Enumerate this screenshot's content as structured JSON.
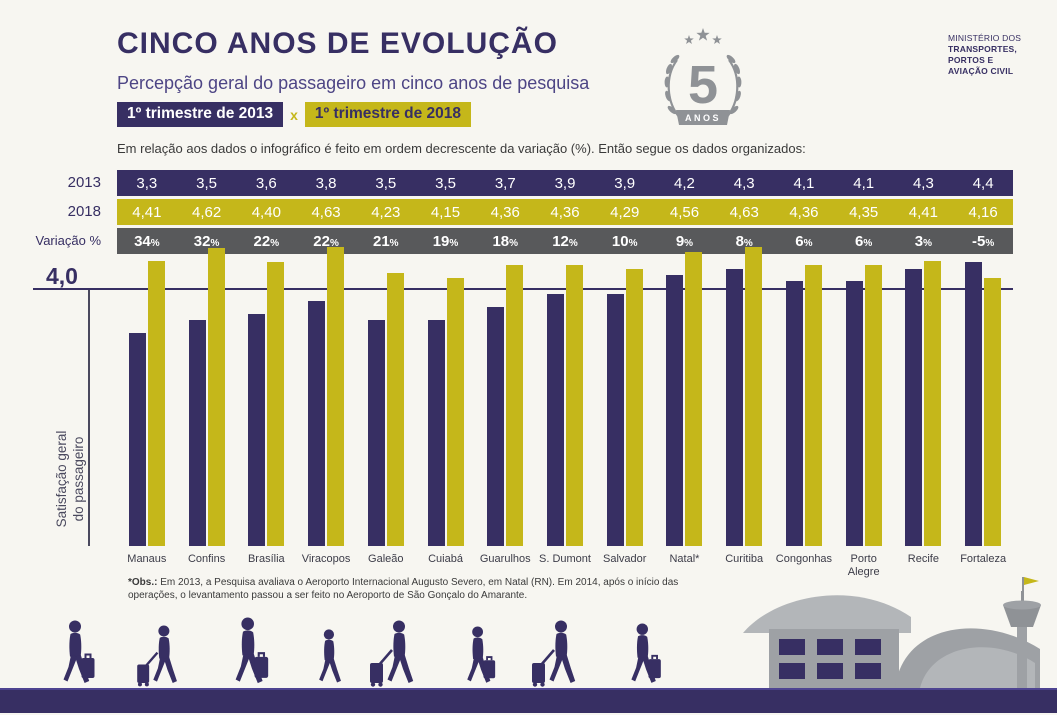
{
  "header": {
    "badge_separator": "x",
    "ministry": [
      "MINISTÉRIO DOS",
      "TRANSPORTES,",
      "PORTOS E",
      "AVIAÇÃO CIVIL"
    ],
    "anniversary": {
      "number": "5",
      "label": "ANOS"
    }
  },
  "intro": "Em relação aos dados o infográfico é feito em ordem decrescente da variação (%). Então segue os dados organizados:",
  "table": {
    "row_labels": [
      "2013",
      "2018",
      "Variação %"
    ]
  },
  "chart_data": {
    "type": "bar",
    "title": "CINCO ANOS DE EVOLUÇÃO",
    "subtitle": "Percepção geral do passageiro em cinco anos de pesquisa",
    "legend": [
      "1º trimestre de 2013",
      "1º trimestre de 2018"
    ],
    "legend_position": "top-left",
    "grid": false,
    "categories": [
      "Manaus",
      "Confins",
      "Brasília",
      "Viracopos",
      "Galeão",
      "Cuiabá",
      "Guarulhos",
      "S. Dumont",
      "Salvador",
      "Natal*",
      "Curitiba",
      "Congonhas",
      "Porto Alegre",
      "Recife",
      "Fortaleza"
    ],
    "series": [
      {
        "name": "2013",
        "color": "#372f63",
        "values": [
          3.3,
          3.5,
          3.6,
          3.8,
          3.5,
          3.5,
          3.7,
          3.9,
          3.9,
          4.2,
          4.3,
          4.1,
          4.1,
          4.3,
          4.4
        ],
        "labels": [
          "3,3",
          "3,5",
          "3,6",
          "3,8",
          "3,5",
          "3,5",
          "3,7",
          "3,9",
          "3,9",
          "4,2",
          "4,3",
          "4,1",
          "4,1",
          "4,3",
          "4,4"
        ]
      },
      {
        "name": "2018",
        "color": "#c5b71a",
        "values": [
          4.41,
          4.62,
          4.4,
          4.63,
          4.23,
          4.15,
          4.36,
          4.36,
          4.29,
          4.56,
          4.63,
          4.36,
          4.35,
          4.41,
          4.16
        ],
        "labels": [
          "4,41",
          "4,62",
          "4,40",
          "4,63",
          "4,23",
          "4,15",
          "4,36",
          "4,36",
          "4,29",
          "4,56",
          "4,63",
          "4,36",
          "4,35",
          "4,41",
          "4,16"
        ]
      }
    ],
    "variation_percent": [
      "34%",
      "32%",
      "22%",
      "22%",
      "21%",
      "19%",
      "18%",
      "12%",
      "10%",
      "9%",
      "8%",
      "6%",
      "6%",
      "3%",
      "-5%"
    ],
    "reference_line": {
      "value": 4.0,
      "label": "4,0"
    },
    "ylabel": "Satisfação geral do passageiro",
    "ylabel_lines": [
      "Satisfação geral",
      "do passageiro"
    ],
    "ylim": [
      0,
      4.65
    ]
  },
  "footnote": {
    "label": "*Obs.:",
    "text": " Em 2013, a Pesquisa avaliava o Aeroporto Internacional Augusto Severo, em Natal (RN). Em 2014, após o início das operações, o levantamento passou a ser feito no Aeroporto de São Gonçalo do Amarante."
  },
  "colors": {
    "background": "#f7f6f1",
    "navy": "#372f63",
    "yellow": "#c5b71a",
    "variation_row": "#58595b",
    "building_gray": "#9ea1a5"
  },
  "icons": {
    "anniversary_badge": "laurel-wreath-5-anos-badge",
    "footer_left": "walking-passengers-silhouettes",
    "footer_right": "airport-terminal-control-tower",
    "flag": "flag-icon"
  }
}
